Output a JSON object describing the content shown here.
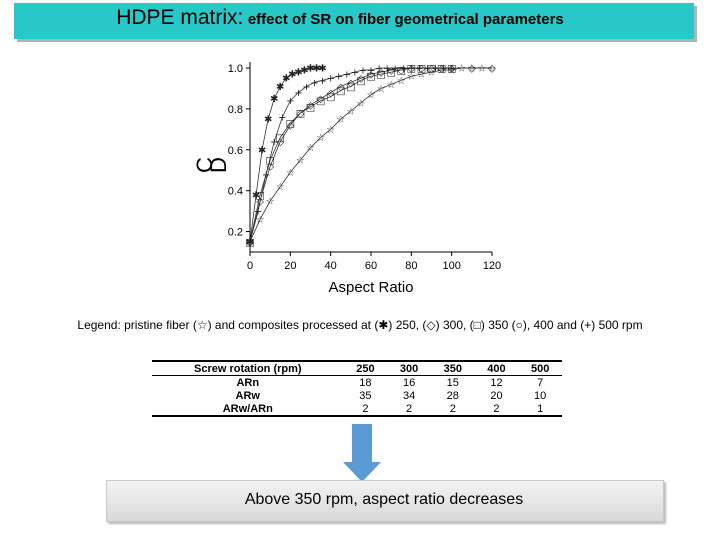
{
  "title": {
    "main": "HDPE matrix:",
    "sub": "effect of SR on fiber geometrical parameters"
  },
  "chart_data": {
    "type": "line",
    "xlabel": "Aspect Ratio",
    "ylabel": "C\nD",
    "xlim": [
      0,
      120
    ],
    "ylim": [
      0,
      1.0
    ],
    "x_ticks": [
      "0",
      "20",
      "40",
      "60",
      "80",
      "100",
      "120"
    ],
    "y_ticks": [
      "0.2",
      "0.4",
      "0.6",
      "0.8",
      "1.0"
    ],
    "grid": false,
    "series": [
      {
        "symbol": "☆",
        "x": [
          0,
          5,
          10,
          15,
          20,
          25,
          30,
          35,
          40,
          45,
          50,
          55,
          60,
          65,
          70,
          75,
          80,
          85,
          90,
          95,
          100,
          105,
          110,
          115,
          120
        ],
        "values": [
          0.15,
          0.26,
          0.35,
          0.42,
          0.49,
          0.55,
          0.61,
          0.66,
          0.7,
          0.75,
          0.79,
          0.83,
          0.87,
          0.9,
          0.92,
          0.94,
          0.96,
          0.97,
          0.98,
          0.99,
          0.99,
          1.0,
          1.0,
          1.0,
          1.0
        ]
      },
      {
        "symbol": "◇",
        "x": [
          0,
          5,
          10,
          15,
          20,
          25,
          30,
          35,
          40,
          45,
          50,
          55,
          60,
          65,
          70,
          75,
          80,
          85,
          90,
          95,
          100,
          110,
          120
        ],
        "values": [
          0.15,
          0.35,
          0.52,
          0.64,
          0.72,
          0.78,
          0.82,
          0.85,
          0.88,
          0.91,
          0.93,
          0.95,
          0.97,
          0.98,
          0.99,
          0.99,
          1.0,
          1.0,
          1.0,
          1.0,
          1.0,
          1.0,
          1.0
        ]
      },
      {
        "symbol": "□",
        "x": [
          0,
          5,
          10,
          15,
          20,
          25,
          30,
          35,
          40,
          45,
          50,
          55,
          60,
          65,
          70,
          75,
          80,
          85,
          90,
          95,
          100
        ],
        "values": [
          0.15,
          0.38,
          0.55,
          0.66,
          0.73,
          0.78,
          0.81,
          0.84,
          0.86,
          0.89,
          0.91,
          0.94,
          0.96,
          0.97,
          0.98,
          0.99,
          1.0,
          1.0,
          1.0,
          1.0,
          1.0
        ]
      },
      {
        "symbol": "+",
        "x": [
          0,
          4,
          8,
          12,
          16,
          20,
          24,
          28,
          32,
          36,
          40,
          44,
          48,
          52,
          56,
          60,
          64,
          68,
          72,
          76,
          80,
          84,
          88,
          92,
          96,
          100
        ],
        "values": [
          0.15,
          0.3,
          0.48,
          0.64,
          0.76,
          0.84,
          0.88,
          0.91,
          0.93,
          0.94,
          0.95,
          0.96,
          0.97,
          0.98,
          0.99,
          0.99,
          1.0,
          1.0,
          1.0,
          1.0,
          1.0,
          1.0,
          1.0,
          1.0,
          1.0,
          1.0
        ]
      },
      {
        "symbol": "✱",
        "x": [
          0,
          3,
          6,
          9,
          12,
          15,
          18,
          21,
          24,
          27,
          30,
          33,
          36
        ],
        "values": [
          0.15,
          0.38,
          0.6,
          0.75,
          0.85,
          0.91,
          0.95,
          0.97,
          0.98,
          0.99,
          1.0,
          1.0,
          1.0
        ]
      }
    ]
  },
  "legend": {
    "prefix": "Legend: pristine fiber (",
    "sym_pristine": "☆",
    "mid": ") and composites processed at (",
    "sym_250": "✱",
    "t250": ") 250, (",
    "sym_300": "◇",
    "t300": ") 300, (",
    "sym_350": "□",
    "t350": ") 350 (",
    "sym_400": "○",
    "t400": "), 400 and (",
    "sym_500": "+",
    "t500": ") 500 rpm"
  },
  "table": {
    "header": [
      "Screw rotation (rpm)",
      "250",
      "300",
      "350",
      "400",
      "500"
    ],
    "rows": [
      [
        "ARn",
        "18",
        "16",
        "15",
        "12",
        "7"
      ],
      [
        "ARw",
        "35",
        "34",
        "28",
        "20",
        "10"
      ],
      [
        "ARw/ARn",
        "2",
        "2",
        "2",
        "2",
        "1"
      ]
    ]
  },
  "conclusion": "Above 350 rpm, aspect ratio decreases",
  "colors": {
    "title_bar": "#28c8c8",
    "arrow": "#5b9bd5"
  }
}
